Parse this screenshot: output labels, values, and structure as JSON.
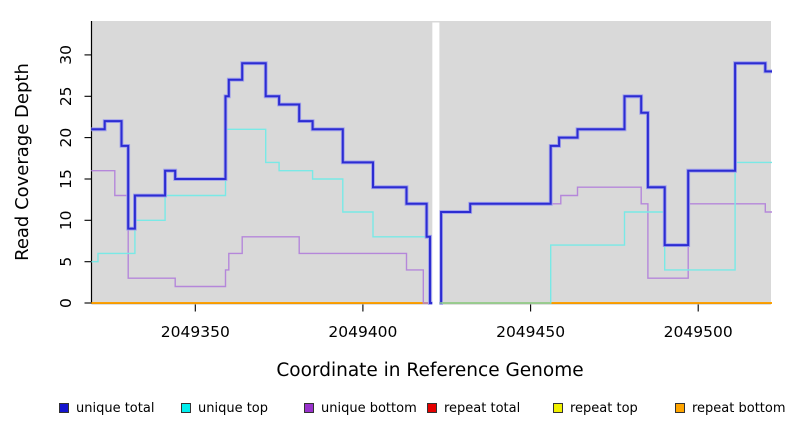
{
  "chart_data": {
    "type": "line",
    "subtype": "step",
    "xlabel": "Coordinate in Reference Genome",
    "ylabel": "Read Coverage Depth",
    "xlim": [
      2049319.2,
      2049521.7
    ],
    "ylim": [
      0,
      34.1
    ],
    "x_ticks": [
      2049350,
      2049400,
      2049450,
      2049500
    ],
    "x_tick_labels": [
      "2049350",
      "2049400",
      "2049450",
      "2049500"
    ],
    "y_ticks": [
      0,
      5,
      10,
      15,
      20,
      25,
      30
    ],
    "y_tick_labels": [
      "0",
      "5",
      "10",
      "15",
      "20",
      "25",
      "30"
    ],
    "plot_background": "#d9d9d9",
    "grid": false,
    "legend_position": "bottom",
    "data_gap": {
      "from": 2049420.7,
      "to": 2049422.8
    },
    "zero_line_overlap": {
      "from": 2049422.8,
      "to": 2049456,
      "value": 0,
      "color": "#8fce98"
    },
    "series": [
      {
        "name": "unique total",
        "color": "#1414cf",
        "line_color": "#2c2cd2",
        "halo_color": "#a0a0ec",
        "steps": [
          [
            2049319,
            21
          ],
          [
            2049323,
            22
          ],
          [
            2049328,
            19
          ],
          [
            2049330,
            9
          ],
          [
            2049332,
            13
          ],
          [
            2049341,
            16
          ],
          [
            2049344,
            15
          ],
          [
            2049359,
            25
          ],
          [
            2049360,
            27
          ],
          [
            2049364,
            29
          ],
          [
            2049371,
            25
          ],
          [
            2049375,
            24
          ],
          [
            2049381,
            22
          ],
          [
            2049385,
            21
          ],
          [
            2049394,
            17
          ],
          [
            2049403,
            14
          ],
          [
            2049413,
            12
          ],
          [
            2049419,
            8
          ],
          [
            2049420,
            0
          ],
          [
            2049423.3,
            11
          ],
          [
            2049432,
            12
          ],
          [
            2049456,
            19
          ],
          [
            2049458.5,
            20
          ],
          [
            2049464,
            21
          ],
          [
            2049478,
            25
          ],
          [
            2049483,
            23
          ],
          [
            2049485,
            14
          ],
          [
            2049490,
            7
          ],
          [
            2049497,
            16
          ],
          [
            2049511,
            29
          ],
          [
            2049520,
            28
          ],
          [
            2049522,
            28
          ]
        ]
      },
      {
        "name": "unique top",
        "color": "#00eeee",
        "line_color": "#79e9e6",
        "steps": [
          [
            2049319,
            5
          ],
          [
            2049321,
            6
          ],
          [
            2049332,
            10
          ],
          [
            2049341,
            13
          ],
          [
            2049359,
            21
          ],
          [
            2049371,
            17
          ],
          [
            2049375,
            16
          ],
          [
            2049385,
            15
          ],
          [
            2049394,
            11
          ],
          [
            2049403,
            8
          ],
          [
            2049420,
            0
          ],
          [
            2049456,
            7
          ],
          [
            2049478,
            11
          ],
          [
            2049490,
            4
          ],
          [
            2049511,
            17
          ],
          [
            2049522,
            17
          ]
        ]
      },
      {
        "name": "unique bottom",
        "color": "#9932cc",
        "line_color": "#b587da",
        "steps": [
          [
            2049319,
            16
          ],
          [
            2049326,
            13
          ],
          [
            2049330,
            3
          ],
          [
            2049344,
            2
          ],
          [
            2049359,
            4
          ],
          [
            2049360,
            6
          ],
          [
            2049364,
            8
          ],
          [
            2049381,
            6
          ],
          [
            2049413,
            4
          ],
          [
            2049418,
            0
          ],
          [
            2049423.3,
            11
          ],
          [
            2049432,
            12
          ],
          [
            2049459,
            13
          ],
          [
            2049464,
            14
          ],
          [
            2049483,
            12
          ],
          [
            2049485,
            3
          ],
          [
            2049497,
            12
          ],
          [
            2049520,
            11
          ],
          [
            2049522,
            11
          ]
        ]
      },
      {
        "name": "repeat total",
        "color": "#e60000",
        "line_color": "#e60000",
        "steps": [
          [
            2049319,
            0
          ],
          [
            2049522,
            0
          ]
        ]
      },
      {
        "name": "repeat top",
        "color": "#f0f000",
        "line_color": "#f0f000",
        "steps": [
          [
            2049319,
            0
          ],
          [
            2049522,
            0
          ]
        ]
      },
      {
        "name": "repeat bottom",
        "color": "#ffa500",
        "line_color": "#ff9f00",
        "steps": [
          [
            2049319,
            0
          ],
          [
            2049522,
            0
          ]
        ]
      }
    ],
    "legend": [
      {
        "label": "unique total",
        "color": "#1414cf"
      },
      {
        "label": "unique top",
        "color": "#00eeee"
      },
      {
        "label": "unique bottom",
        "color": "#9932cc"
      },
      {
        "label": "repeat total",
        "color": "#e60000"
      },
      {
        "label": "repeat top",
        "color": "#f0f000"
      },
      {
        "label": "repeat bottom",
        "color": "#ffa500"
      }
    ]
  }
}
